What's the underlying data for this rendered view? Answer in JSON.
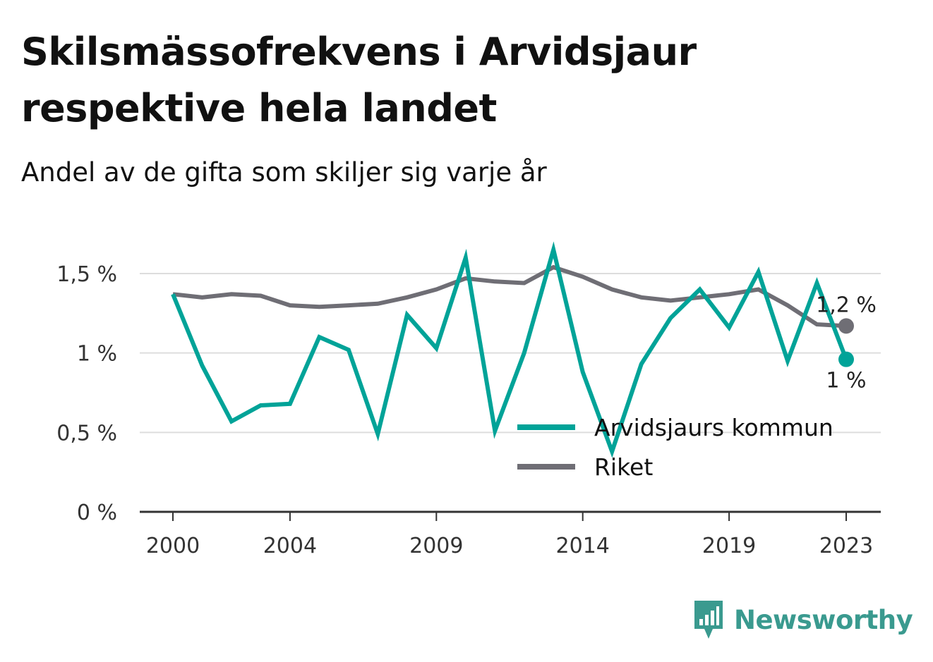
{
  "title": "Skilsmässofrekvens i Arvidsjaur respektive hela landet",
  "subtitle": "Andel av de gifta som skiljer sig varje år",
  "logo_text": "Newsworthy",
  "colors": {
    "arvidsjaur": "#00a398",
    "riket": "#6f6e75",
    "grid": "#dddddd",
    "axis": "#333333",
    "logo": "#3a9a8f"
  },
  "chart_data": {
    "type": "line",
    "x": [
      2000,
      2001,
      2002,
      2003,
      2004,
      2005,
      2006,
      2007,
      2008,
      2009,
      2010,
      2011,
      2012,
      2013,
      2014,
      2015,
      2016,
      2017,
      2018,
      2019,
      2020,
      2021,
      2022,
      2023
    ],
    "xticks": [
      2000,
      2004,
      2009,
      2014,
      2019,
      2023
    ],
    "xtick_labels": [
      "2000",
      "2004",
      "2009",
      "2014",
      "2019",
      "2023"
    ],
    "yticks": [
      0,
      0.5,
      1,
      1.5
    ],
    "ytick_labels": [
      "0 %",
      "0,5 %",
      "1 %",
      "1,5 %"
    ],
    "ylim": [
      0,
      1.6
    ],
    "grid": true,
    "legend_position": "bottom-right",
    "series": [
      {
        "name": "Arvidsjaurs kommun",
        "color": "#00a398",
        "values": [
          1.37,
          0.92,
          0.57,
          0.67,
          0.68,
          1.1,
          1.02,
          0.49,
          1.24,
          1.03,
          1.6,
          0.51,
          1.0,
          1.65,
          0.88,
          0.38,
          0.93,
          1.22,
          1.4,
          1.16,
          1.51,
          0.95,
          1.44,
          0.96
        ],
        "end_label": "1 %"
      },
      {
        "name": "Riket",
        "color": "#6f6e75",
        "values": [
          1.37,
          1.35,
          1.37,
          1.36,
          1.3,
          1.29,
          1.3,
          1.31,
          1.35,
          1.4,
          1.47,
          1.45,
          1.44,
          1.54,
          1.48,
          1.4,
          1.35,
          1.33,
          1.35,
          1.37,
          1.4,
          1.3,
          1.18,
          1.17
        ],
        "end_label": "1,2 %"
      }
    ]
  }
}
